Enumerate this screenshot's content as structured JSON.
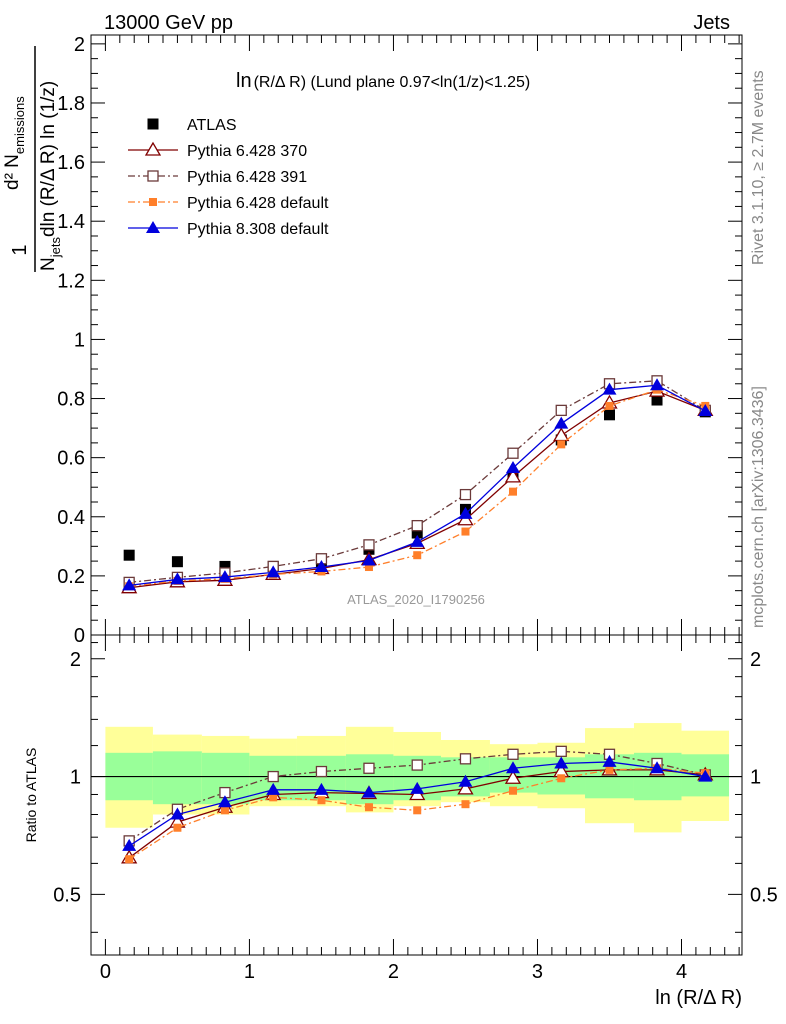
{
  "header": {
    "left": "13000 GeV pp",
    "right": "Jets"
  },
  "side": {
    "rivet": "Rivet 3.1.10, ≥ 2.7M events",
    "mcplots": "mcplots.cern.ch [arXiv:1306.3436]"
  },
  "watermark": "ATLAS_2020_I1790256",
  "colors": {
    "atlas": "#000000",
    "p370": "#800000",
    "p391": "#6b3a3a",
    "p6def": "#ff7f2a",
    "p8def": "#0000dd",
    "band_inner": "#99ff99",
    "band_outer": "#ffff99"
  },
  "chart_data": [
    {
      "type": "scatter",
      "title": "ln(R/Δ R) (Lund plane 0.97<ln(1/z)<1.25)",
      "title_main": "ln",
      "title_rest": "(R/Δ R) (Lund plane 0.97<ln(1/z)<1.25)",
      "ylabel_num": "d² N",
      "ylabel_num_sub": "emissions",
      "ylabel_den_main": "N",
      "ylabel_den_sub": "jets",
      "ylabel_den_rest": "dln (R/Δ R) ln (1/z)",
      "ylabel_one": "1",
      "xlim": [
        -0.1,
        4.42
      ],
      "ylim": [
        0,
        2.03
      ],
      "yticks": [
        0,
        0.2,
        0.4,
        0.6,
        0.8,
        1,
        1.2,
        1.4,
        1.6,
        1.8,
        2
      ],
      "ytick_labels": [
        "0",
        "0.2",
        "0.4",
        "0.6",
        "0.8",
        "1",
        "1.2",
        "1.4",
        "1.6",
        "1.8",
        "2"
      ],
      "x": [
        0.165,
        0.5,
        0.83,
        1.165,
        1.5,
        1.83,
        2.165,
        2.5,
        2.83,
        3.165,
        3.5,
        3.83,
        4.165
      ],
      "legend_position": "top-left",
      "series": [
        {
          "name": "ATLAS",
          "key": "atlas",
          "marker": "square-filled",
          "values": [
            0.27,
            0.248,
            0.232,
            0.232,
            0.248,
            0.29,
            0.345,
            0.425,
            0.54,
            0.66,
            0.745,
            0.795,
            0.755
          ]
        },
        {
          "name": "Pythia 6.428 370",
          "key": "p370",
          "marker": "triangle-open",
          "line": "solid",
          "values": [
            0.16,
            0.18,
            0.185,
            0.205,
            0.225,
            0.255,
            0.31,
            0.39,
            0.535,
            0.675,
            0.785,
            0.825,
            0.76
          ]
        },
        {
          "name": "Pythia 6.428 391",
          "key": "p391",
          "marker": "square-open",
          "line": "dashdot",
          "values": [
            0.178,
            0.195,
            0.21,
            0.232,
            0.258,
            0.305,
            0.37,
            0.475,
            0.615,
            0.76,
            0.85,
            0.86,
            0.76
          ]
        },
        {
          "name": "Pythia 6.428 default",
          "key": "p6def",
          "marker": "square-small-filled",
          "line": "dashdot",
          "values": [
            0.165,
            0.183,
            0.19,
            0.205,
            0.215,
            0.23,
            0.27,
            0.35,
            0.485,
            0.645,
            0.775,
            0.83,
            0.775
          ]
        },
        {
          "name": "Pythia 8.308 default",
          "key": "p8def",
          "marker": "triangle-filled",
          "line": "solid",
          "values": [
            0.168,
            0.188,
            0.196,
            0.212,
            0.23,
            0.252,
            0.315,
            0.41,
            0.565,
            0.715,
            0.83,
            0.845,
            0.758
          ]
        }
      ]
    },
    {
      "type": "scatter",
      "ylabel": "Ratio to ATLAS",
      "xlabel": "ln (R/Δ R)",
      "xlim": [
        -0.1,
        4.42
      ],
      "ylim": [
        0.35,
        2.3
      ],
      "xticks": [
        0,
        1,
        2,
        3,
        4
      ],
      "xtick_labels": [
        "0",
        "1",
        "2",
        "3",
        "4"
      ],
      "yticks": [
        0.5,
        1,
        2
      ],
      "ytick_labels": [
        "0.5",
        "1",
        "2"
      ],
      "x": [
        0.165,
        0.5,
        0.83,
        1.165,
        1.5,
        1.83,
        2.165,
        2.5,
        2.83,
        3.165,
        3.5,
        3.83,
        4.165
      ],
      "bin_edges": [
        0,
        0.33,
        0.67,
        1,
        1.33,
        1.67,
        2,
        2.33,
        2.67,
        3,
        3.33,
        3.67,
        4,
        4.33
      ],
      "band_inner_low": [
        0.87,
        0.85,
        0.85,
        0.87,
        0.87,
        0.85,
        0.87,
        0.89,
        0.91,
        0.9,
        0.88,
        0.87,
        0.89
      ],
      "band_inner_high": [
        1.15,
        1.16,
        1.15,
        1.13,
        1.13,
        1.14,
        1.13,
        1.12,
        1.12,
        1.12,
        1.14,
        1.15,
        1.14
      ],
      "band_outer_low": [
        0.74,
        0.8,
        0.8,
        0.84,
        0.84,
        0.81,
        0.84,
        0.86,
        0.84,
        0.83,
        0.76,
        0.72,
        0.77
      ],
      "band_outer_high": [
        1.34,
        1.28,
        1.27,
        1.25,
        1.27,
        1.34,
        1.3,
        1.24,
        1.21,
        1.22,
        1.33,
        1.37,
        1.31
      ],
      "series": [
        {
          "name": "Pythia 6.428 370",
          "key": "p370",
          "marker": "triangle-open",
          "line": "solid",
          "values": [
            0.62,
            0.765,
            0.835,
            0.9,
            0.91,
            0.905,
            0.9,
            0.93,
            0.99,
            1.03,
            1.04,
            1.04,
            1.01
          ]
        },
        {
          "name": "Pythia 6.428 391",
          "key": "p391",
          "marker": "square-open",
          "line": "dashdot",
          "values": [
            0.685,
            0.825,
            0.91,
            1.0,
            1.03,
            1.05,
            1.07,
            1.11,
            1.14,
            1.16,
            1.14,
            1.08,
            1.01
          ]
        },
        {
          "name": "Pythia 6.428 default",
          "key": "p6def",
          "marker": "square-small-filled",
          "line": "dashdot",
          "values": [
            0.615,
            0.74,
            0.82,
            0.885,
            0.87,
            0.835,
            0.82,
            0.85,
            0.92,
            0.99,
            1.04,
            1.05,
            1.02
          ]
        },
        {
          "name": "Pythia 8.308 default",
          "key": "p8def",
          "marker": "triangle-filled",
          "line": "solid",
          "values": [
            0.665,
            0.8,
            0.86,
            0.925,
            0.925,
            0.91,
            0.93,
            0.97,
            1.05,
            1.08,
            1.09,
            1.05,
            1.0
          ]
        }
      ]
    }
  ]
}
